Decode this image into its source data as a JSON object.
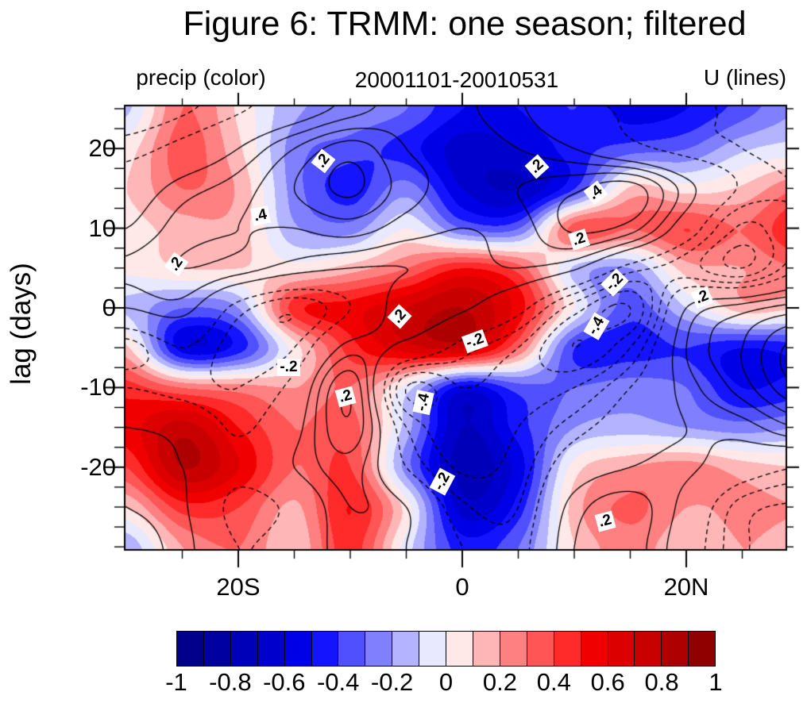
{
  "figure": {
    "title": "Figure 6: TRMM: one season; filtered",
    "subtitle_left": "precip (color)",
    "subtitle_center": "20001101-20010531",
    "subtitle_right": "U (lines)",
    "ylabel": "lag (days)"
  },
  "chart_data": {
    "type": "heatmap",
    "description": "Filled lag-latitude contour plot of filtered TRMM precipitation (color shading) with zonal wind U line contours (solid positive, dashed negative) overlaid.",
    "x_axis": {
      "units": "degrees latitude",
      "range": [
        -30.1,
        28.9
      ],
      "major_ticks": [
        {
          "value": -20,
          "label": "20S"
        },
        {
          "value": 0,
          "label": "0"
        },
        {
          "value": 20,
          "label": "20N"
        }
      ],
      "minor_ticks": [
        -25,
        -15,
        -10,
        -5,
        5,
        10,
        15,
        25
      ]
    },
    "y_axis": {
      "units": "days",
      "range": [
        25.4,
        -30.4
      ],
      "major_ticks": [
        {
          "value": 20,
          "label": "20"
        },
        {
          "value": 10,
          "label": "10"
        },
        {
          "value": 0,
          "label": "0"
        },
        {
          "value": -10,
          "label": "-10"
        },
        {
          "value": -20,
          "label": "-20"
        }
      ],
      "minor_ticks": [
        25,
        22.5,
        17.5,
        15,
        12.5,
        7.5,
        5,
        2.5,
        -2.5,
        -5,
        -7.5,
        -12.5,
        -15,
        -17.5,
        -22.5,
        -25,
        -27.5,
        -30
      ]
    },
    "grid_lats": [
      -30,
      -25,
      -20,
      -15,
      -10,
      -5,
      0,
      5,
      10,
      15,
      20,
      25,
      30
    ],
    "grid_lags": [
      25,
      20,
      15,
      10,
      5,
      0,
      -5,
      -10,
      -15,
      -20,
      -25,
      -30
    ],
    "precip_grid": [
      [
        -0.12,
        0.3,
        0.08,
        -0.18,
        -0.22,
        -0.3,
        -0.5,
        -0.5,
        -0.4,
        -0.55,
        -0.5,
        -0.35,
        -0.2
      ],
      [
        0.05,
        0.35,
        0.12,
        -0.25,
        -0.35,
        -0.45,
        -0.65,
        -0.6,
        -0.45,
        -0.35,
        -0.3,
        -0.12,
        -0.05
      ],
      [
        0.1,
        0.3,
        0.18,
        -0.25,
        -0.45,
        -0.25,
        -0.6,
        -0.7,
        -0.4,
        0.12,
        0.05,
        0.12,
        0.3
      ],
      [
        0.05,
        0.15,
        0.15,
        -0.18,
        -0.25,
        0.0,
        -0.3,
        -0.3,
        0.35,
        0.3,
        0.4,
        0.3,
        0.5
      ],
      [
        0.02,
        0.1,
        0.1,
        0.05,
        0.15,
        0.3,
        0.5,
        0.35,
        -0.12,
        -0.2,
        0.15,
        0.2,
        0.3
      ],
      [
        -0.12,
        -0.3,
        -0.2,
        0.45,
        0.55,
        0.7,
        0.8,
        0.55,
        0.0,
        -0.35,
        -0.1,
        0.15,
        0.1
      ],
      [
        0.12,
        -0.55,
        -0.45,
        0.05,
        0.45,
        0.65,
        0.7,
        0.3,
        -0.4,
        -0.45,
        -0.4,
        -0.5,
        -0.45
      ],
      [
        0.45,
        0.3,
        0.25,
        0.2,
        0.3,
        -0.05,
        -0.55,
        -0.35,
        -0.3,
        -0.25,
        -0.3,
        -0.5,
        -0.45
      ],
      [
        0.55,
        0.75,
        0.5,
        0.3,
        0.35,
        -0.15,
        -0.7,
        -0.45,
        -0.2,
        -0.15,
        -0.2,
        -0.25,
        -0.2
      ],
      [
        0.4,
        0.8,
        0.6,
        0.3,
        0.4,
        -0.25,
        -0.75,
        -0.55,
        0.05,
        0.2,
        0.25,
        0.15,
        0.1
      ],
      [
        0.1,
        0.45,
        0.4,
        0.18,
        0.5,
        0.05,
        -0.65,
        -0.45,
        0.15,
        0.32,
        0.2,
        0.22,
        0.2
      ],
      [
        -0.18,
        0.2,
        0.3,
        0.12,
        0.45,
        -0.05,
        -0.45,
        -0.3,
        0.1,
        0.25,
        0.12,
        0.2,
        0.15
      ]
    ],
    "u_grid": [
      [
        -0.28,
        -0.22,
        -0.12,
        0.0,
        0.15,
        0.25,
        0.22,
        0.12,
        -0.05,
        -0.12,
        -0.18,
        -0.22,
        -0.3
      ],
      [
        -0.15,
        -0.05,
        0.1,
        0.3,
        0.45,
        0.3,
        0.25,
        0.2,
        0.1,
        -0.05,
        -0.15,
        -0.2,
        -0.25
      ],
      [
        0.0,
        0.15,
        0.25,
        0.4,
        0.52,
        0.35,
        0.25,
        0.3,
        0.38,
        0.45,
        0.15,
        -0.12,
        -0.2
      ],
      [
        0.1,
        0.25,
        0.3,
        0.3,
        0.35,
        0.25,
        0.2,
        0.25,
        0.42,
        0.35,
        0.0,
        -0.32,
        -0.2
      ],
      [
        0.22,
        0.3,
        0.25,
        0.15,
        0.1,
        0.1,
        0.15,
        0.2,
        0.12,
        -0.15,
        -0.25,
        -0.4,
        -0.12
      ],
      [
        0.1,
        0.15,
        -0.15,
        -0.28,
        -0.1,
        0.18,
        0.12,
        -0.05,
        -0.35,
        -0.5,
        0.1,
        0.25,
        0.35
      ],
      [
        -0.25,
        -0.1,
        -0.25,
        -0.2,
        0.15,
        0.05,
        -0.15,
        -0.3,
        -0.5,
        -0.3,
        0.2,
        0.4,
        0.65
      ],
      [
        -0.1,
        -0.15,
        -0.2,
        -0.05,
        0.38,
        -0.4,
        -0.3,
        -0.35,
        -0.3,
        -0.1,
        0.15,
        0.35,
        0.6
      ],
      [
        0.1,
        0.05,
        -0.12,
        0.05,
        0.38,
        -0.2,
        -0.38,
        -0.3,
        -0.15,
        0.0,
        0.1,
        0.15,
        0.3
      ],
      [
        0.15,
        0.1,
        -0.05,
        0.1,
        0.25,
        -0.1,
        -0.32,
        -0.25,
        0.0,
        0.1,
        0.12,
        0.0,
        -0.1
      ],
      [
        0.2,
        0.12,
        -0.15,
        -0.05,
        0.2,
        0.1,
        -0.18,
        -0.2,
        0.15,
        0.25,
        0.05,
        -0.25,
        -0.32
      ],
      [
        0.25,
        0.15,
        -0.1,
        0.0,
        0.15,
        0.1,
        -0.1,
        -0.15,
        0.2,
        0.25,
        0.0,
        -0.28,
        -0.35
      ]
    ],
    "u_contour_levels": [
      -0.6,
      -0.5,
      -0.4,
      -0.3,
      -0.2,
      -0.1,
      0.1,
      0.2,
      0.3,
      0.4,
      0.5,
      0.6
    ],
    "contour_labels": [
      {
        "text": ".2",
        "lat": -25.5,
        "lag": 5.5,
        "rot": -55
      },
      {
        "text": ".4",
        "lat": -18.0,
        "lag": 11.6,
        "rot": -12
      },
      {
        "text": ".2",
        "lat": -12.4,
        "lag": 18.4,
        "rot": -52
      },
      {
        "text": ".2",
        "lat": 6.7,
        "lag": 17.7,
        "rot": -42
      },
      {
        "text": ".4",
        "lat": 11.9,
        "lag": 14.4,
        "rot": -38
      },
      {
        "text": ".2",
        "lat": 10.4,
        "lag": 8.6,
        "rot": -18
      },
      {
        "text": "-.2",
        "lat": 13.6,
        "lag": 3.2,
        "rot": -45
      },
      {
        "text": ".2",
        "lat": 21.4,
        "lag": 1.3,
        "rot": -22
      },
      {
        "text": "-.2",
        "lat": 1.1,
        "lag": -4.2,
        "rot": -20
      },
      {
        "text": "-.4",
        "lat": 12.0,
        "lag": -2.3,
        "rot": -60
      },
      {
        "text": ".2",
        "lat": -5.6,
        "lag": -1.1,
        "rot": -48
      },
      {
        "text": "-.2",
        "lat": -15.5,
        "lag": -7.5,
        "rot": 0
      },
      {
        "text": ".2",
        "lat": -10.4,
        "lag": -11.2,
        "rot": -15
      },
      {
        "text": "-.4",
        "lat": -3.5,
        "lag": -11.9,
        "rot": -78
      },
      {
        "text": "-.2",
        "lat": -1.8,
        "lag": -21.8,
        "rot": -62
      },
      {
        "text": ".2",
        "lat": 12.8,
        "lag": -26.8,
        "rot": -15
      }
    ],
    "colorbar": {
      "range": [
        -1,
        1
      ],
      "step": 0.1,
      "colors": [
        "#00008B",
        "#0000A0",
        "#0000B8",
        "#0000CD",
        "#0000E6",
        "#1414FF",
        "#5050FF",
        "#8080FF",
        "#B3B3FF",
        "#E8E8FF",
        "#FFE8E8",
        "#FFB6B6",
        "#FF8080",
        "#FF5555",
        "#FF2A2A",
        "#F10000",
        "#DC0000",
        "#C80000",
        "#AE0000",
        "#900000"
      ],
      "tick_labels": [
        "-1",
        "-0.8",
        "-0.6",
        "-0.4",
        "-0.2",
        "0",
        "0.2",
        "0.4",
        "0.6",
        "0.8",
        "1"
      ]
    }
  }
}
